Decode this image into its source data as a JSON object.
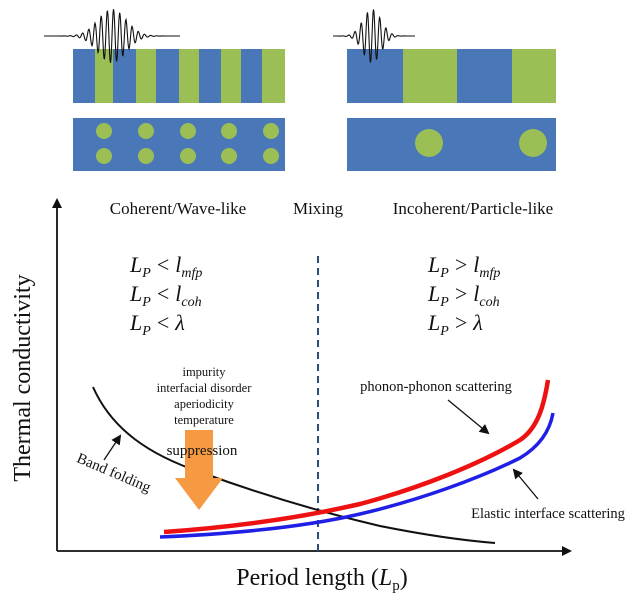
{
  "colors": {
    "blue": "#4a77b8",
    "green": "#9bbf55",
    "red": "#ee1111",
    "darkblue": "#1f1fe6",
    "black": "#111111",
    "orange": "#f59a42",
    "dashed": "#2b4d7a"
  },
  "regimes": {
    "coherent": "Coherent/Wave-like",
    "mixing": "Mixing",
    "incoherent": "Incoherent/Particle-like"
  },
  "conditions": {
    "left": [
      {
        "lhs": "L",
        "lsub": "P",
        "op": "<",
        "rhs": "l",
        "rsub": "mfp"
      },
      {
        "lhs": "L",
        "lsub": "P",
        "op": "<",
        "rhs": "l",
        "rsub": "coh"
      },
      {
        "lhs": "L",
        "lsub": "P",
        "op": "<",
        "rhs": "λ",
        "rsub": ""
      }
    ],
    "right": [
      {
        "lhs": "L",
        "lsub": "P",
        "op": ">",
        "rhs": "l",
        "rsub": "mfp"
      },
      {
        "lhs": "L",
        "lsub": "P",
        "op": ">",
        "rhs": "l",
        "rsub": "coh"
      },
      {
        "lhs": "L",
        "lsub": "P",
        "op": ">",
        "rhs": "λ",
        "rsub": ""
      }
    ]
  },
  "factors": [
    "impurity",
    "interfacial disorder",
    "aperiodicity",
    "temperature"
  ],
  "labels": {
    "suppression": "suppression",
    "band_folding": "Band folding",
    "phonon_phonon": "phonon-phonon scattering",
    "elastic_interface": "Elastic interface scattering"
  },
  "axes": {
    "y_label": "Thermal conductivity",
    "x_label_main": "Period length (",
    "x_label_var": "L",
    "x_label_sub": "p",
    "x_label_close": ")"
  }
}
